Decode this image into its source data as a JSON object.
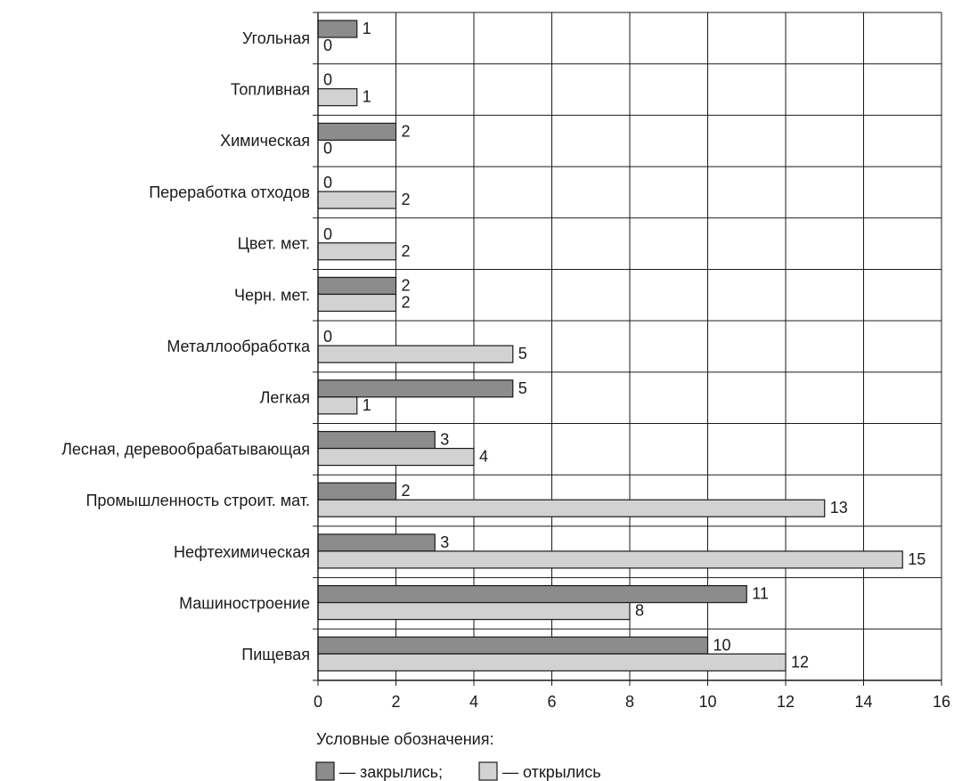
{
  "chart_data": {
    "type": "bar",
    "orientation": "horizontal",
    "categories": [
      "Угольная",
      "Топливная",
      "Химическая",
      "Переработка отходов",
      "Цвет. мет.",
      "Черн. мет.",
      "Металлообработка",
      "Легкая",
      "Лесная, деревообрабатывающая",
      "Промышленность строит. мат.",
      "Нефтехимическая",
      "Машиностроение",
      "Пищевая"
    ],
    "series": [
      {
        "name": "закрылись",
        "color": "#8c8c8c",
        "values": [
          1,
          0,
          2,
          0,
          0,
          2,
          0,
          5,
          3,
          2,
          3,
          11,
          10
        ]
      },
      {
        "name": "открылись",
        "color": "#d2d2d2",
        "values": [
          0,
          1,
          0,
          2,
          2,
          2,
          5,
          1,
          4,
          13,
          15,
          8,
          12
        ]
      }
    ],
    "x_ticks": [
      0,
      2,
      4,
      6,
      8,
      10,
      12,
      14,
      16
    ],
    "xlim": [
      0,
      16
    ],
    "grid": true,
    "title": "",
    "xlabel": "",
    "ylabel": ""
  },
  "legend": {
    "title": "Условные обозначения:",
    "items": [
      {
        "label": "— закрылись;",
        "color": "#8c8c8c"
      },
      {
        "label": "— открылись",
        "color": "#d2d2d2"
      }
    ]
  }
}
